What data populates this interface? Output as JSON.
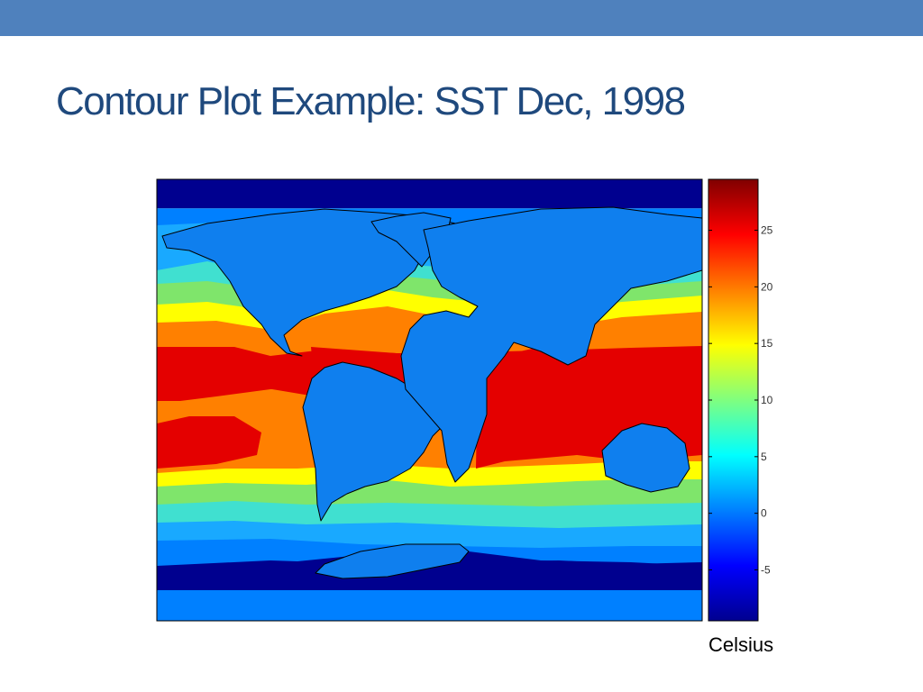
{
  "slide": {
    "title": "Contour Plot Example: SST Dec, 1998",
    "accent_color": "#4f81bd",
    "title_color": "#1f497d"
  },
  "chart_data": {
    "type": "heatmap",
    "title": "",
    "xlabel": "",
    "ylabel": "",
    "colorbar": {
      "label": "Celsius",
      "range": [
        -9.5,
        29.5
      ],
      "ticks": [
        25,
        20,
        15,
        10,
        5,
        0,
        -5
      ],
      "colormap": "jet",
      "placement": "right"
    },
    "contour_levels": [
      -2,
      1,
      3,
      8,
      13,
      18,
      23
    ],
    "level_colors": [
      "#00008f",
      "#0080ff",
      "#19a9ff",
      "#40e0d0",
      "#7fe56b",
      "#ffff00",
      "#ff8000",
      "#e40000"
    ],
    "land_color": "#0f7fee",
    "grid": false
  }
}
